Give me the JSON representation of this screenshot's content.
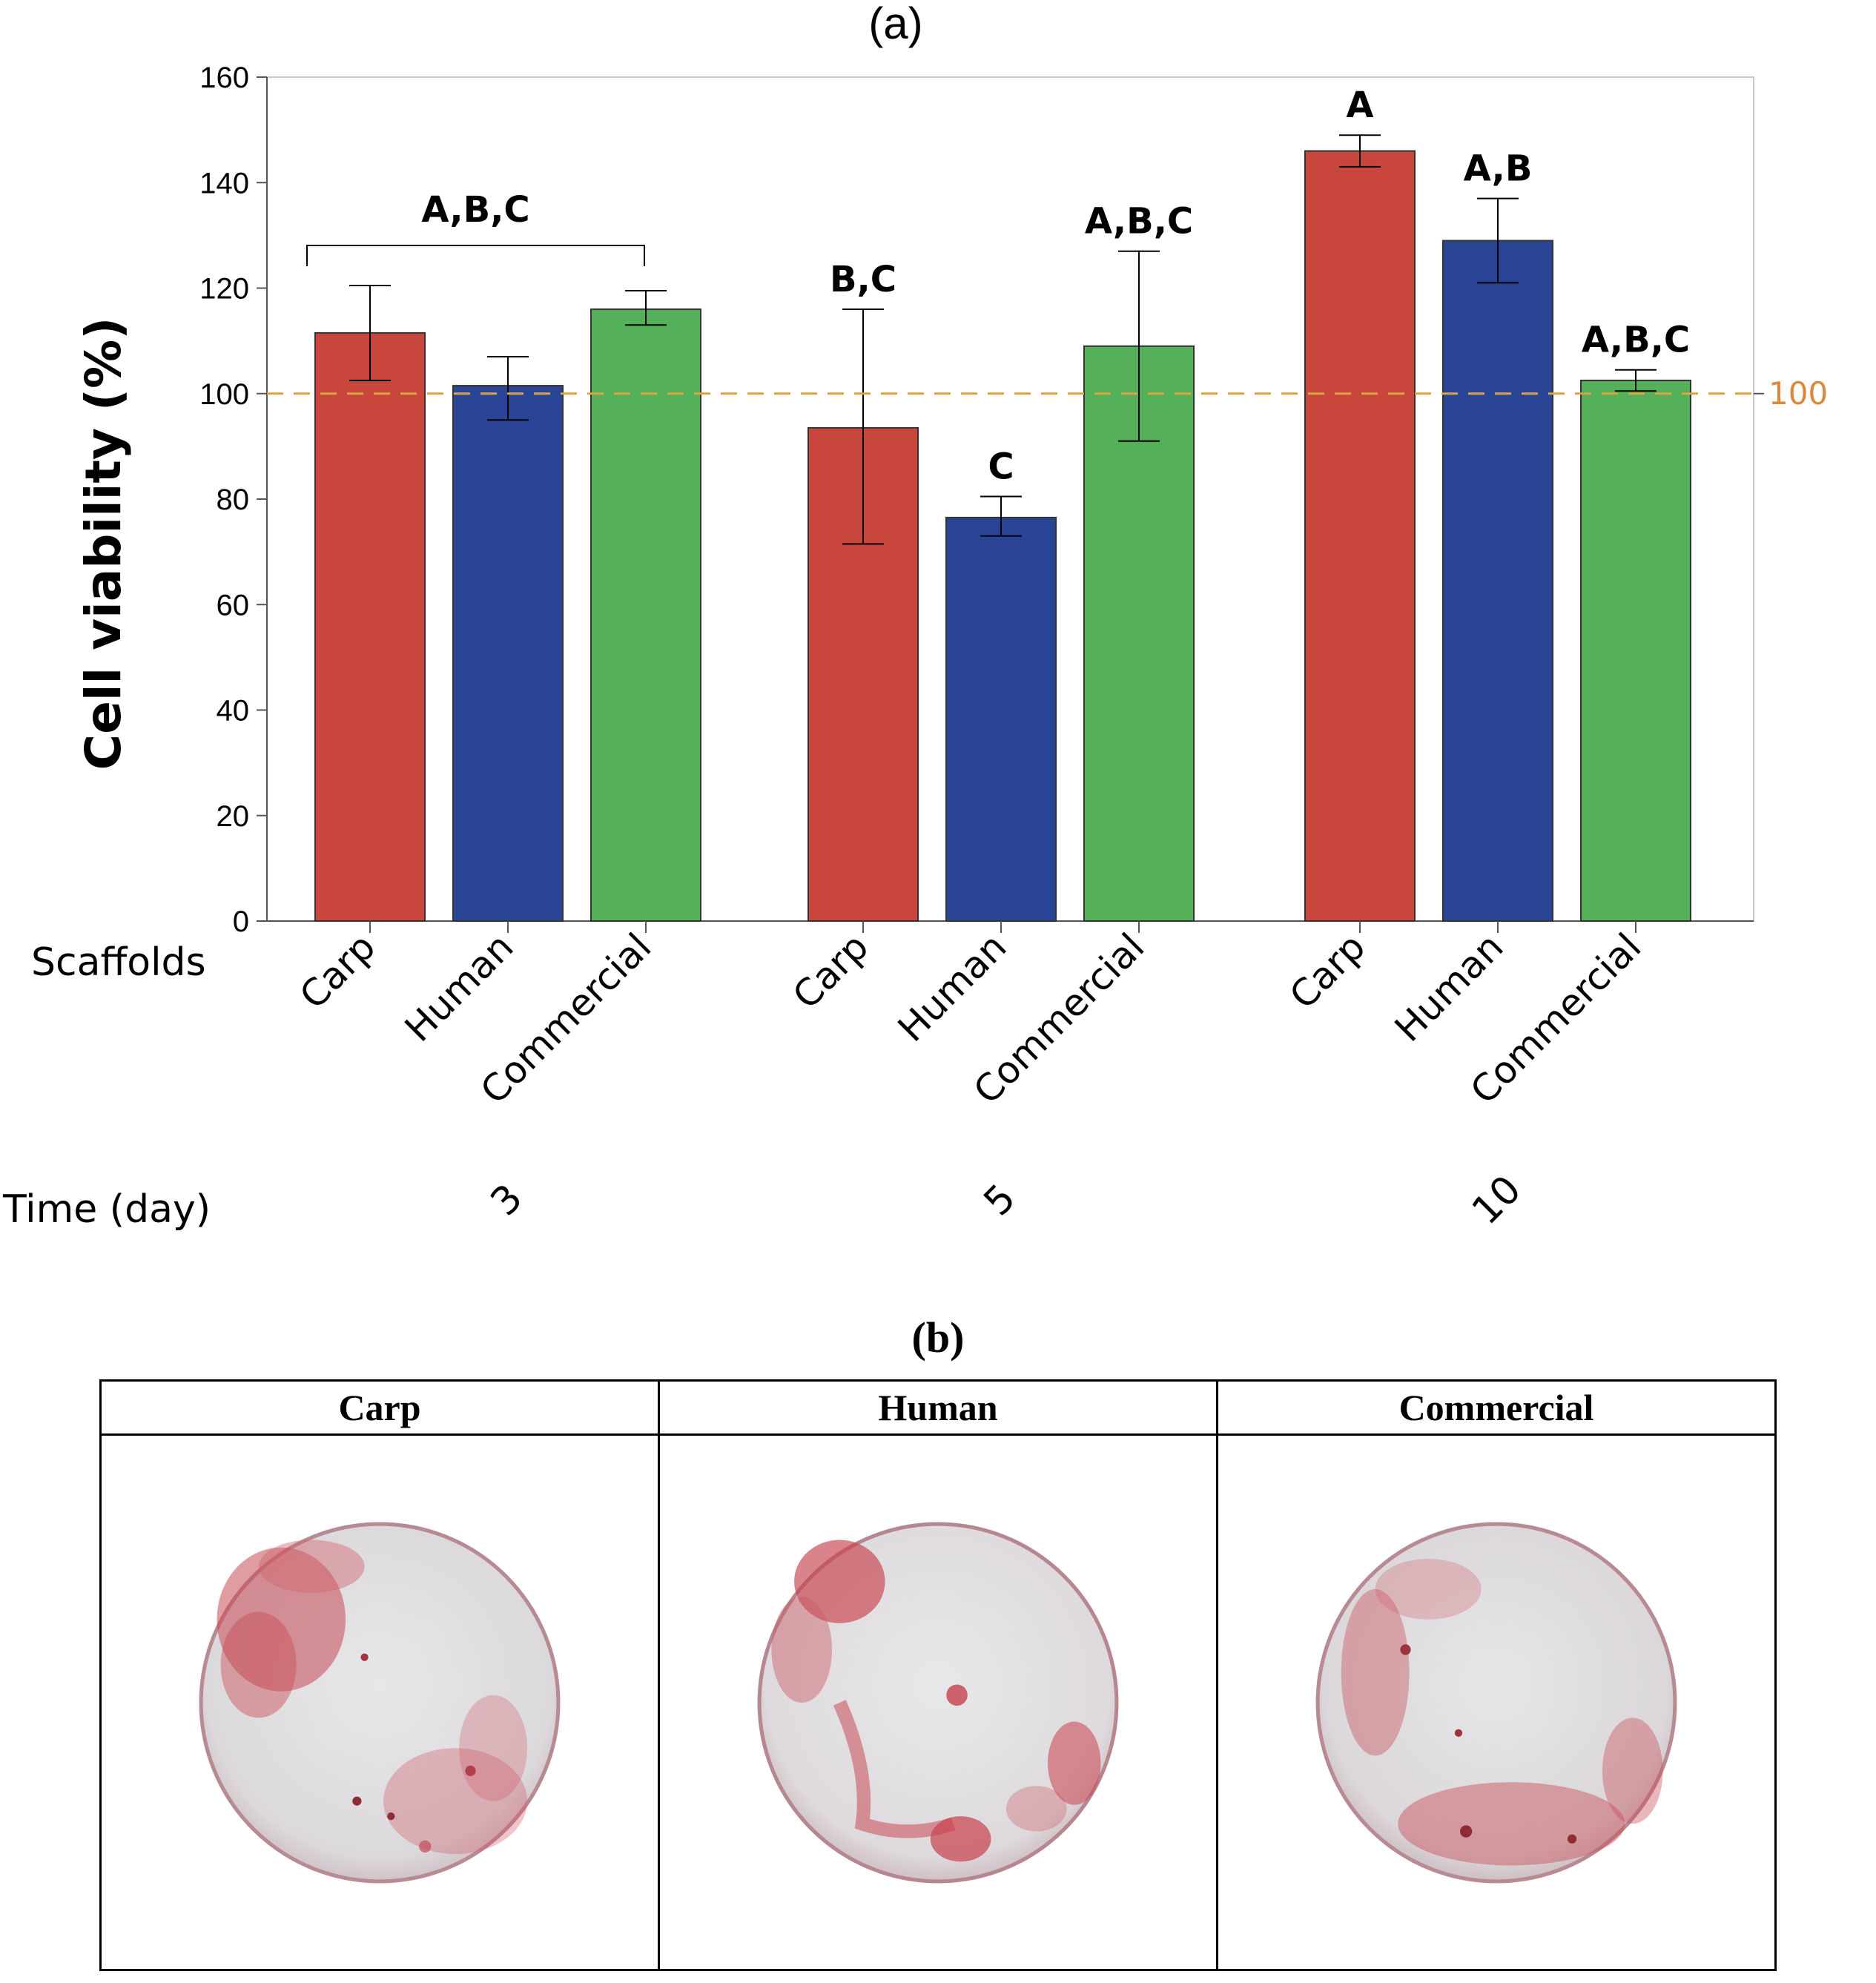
{
  "chart_data": {
    "type": "bar",
    "panel_label": "(a)",
    "ylabel": "Cell viability (%)",
    "ylim": [
      0,
      160
    ],
    "yticks": [
      0,
      20,
      40,
      60,
      80,
      100,
      120,
      140,
      160
    ],
    "reference_line": {
      "value": 100,
      "label": "100",
      "color": "#d9a441"
    },
    "row_labels": {
      "scaffolds": "Scaffolds",
      "time": "Time (day)"
    },
    "groups": [
      {
        "time": "3",
        "bracket_label": "A,B,C",
        "bars": [
          {
            "scaffold": "Carp",
            "value": 111.5,
            "err_low": 102.5,
            "err_high": 120.5,
            "color": "#c9463d",
            "letter": ""
          },
          {
            "scaffold": "Human",
            "value": 101.5,
            "err_low": 95,
            "err_high": 107,
            "color": "#2b4596",
            "letter": ""
          },
          {
            "scaffold": "Commercial",
            "value": 116,
            "err_low": 113,
            "err_high": 119.5,
            "color": "#55b05a",
            "letter": ""
          }
        ]
      },
      {
        "time": "5",
        "bracket_label": "",
        "bars": [
          {
            "scaffold": "Carp",
            "value": 93.5,
            "err_low": 71.5,
            "err_high": 116,
            "color": "#c9463d",
            "letter": "B,C"
          },
          {
            "scaffold": "Human",
            "value": 76.5,
            "err_low": 73,
            "err_high": 80.5,
            "color": "#2b4596",
            "letter": "C"
          },
          {
            "scaffold": "Commercial",
            "value": 109,
            "err_low": 91,
            "err_high": 127,
            "color": "#55b05a",
            "letter": "A,B,C"
          }
        ]
      },
      {
        "time": "10",
        "bracket_label": "",
        "bars": [
          {
            "scaffold": "Carp",
            "value": 146,
            "err_low": 143,
            "err_high": 149,
            "color": "#c9463d",
            "letter": "A"
          },
          {
            "scaffold": "Human",
            "value": 129,
            "err_low": 121,
            "err_high": 137,
            "color": "#2b4596",
            "letter": "A,B"
          },
          {
            "scaffold": "Commercial",
            "value": 102.5,
            "err_low": 100.5,
            "err_high": 104.5,
            "color": "#55b05a",
            "letter": "A,B,C"
          }
        ]
      }
    ]
  },
  "panel_b": {
    "title": "(b)",
    "columns": [
      {
        "label": "Carp"
      },
      {
        "label": "Human"
      },
      {
        "label": "Commercial"
      }
    ]
  }
}
